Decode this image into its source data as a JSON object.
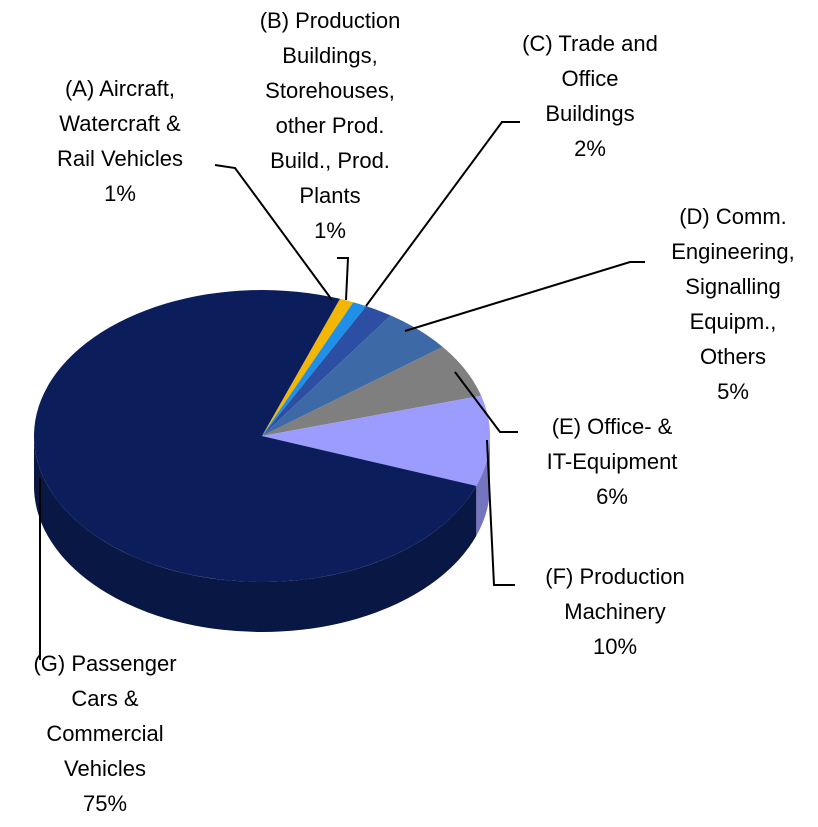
{
  "chart_data": {
    "type": "pie",
    "categories": [
      "(A) Aircraft,\nWatercraft &\nRail Vehicles",
      "(B) Production\nBuildings,\nStorehouses,\nother Prod.\nBuild.,  Prod.\nPlants",
      "(C) Trade  and\nOffice\nBuildings",
      "(D) Comm.\nEngineering,\nSignalling\nEquipm.,\nOthers",
      "(E) Office-  &\nIT-Equipment",
      "(F) Production\nMachinery",
      "(G) Passenger\nCars  &\nCommercial\nVehicles"
    ],
    "values": [
      1,
      1,
      2,
      5,
      6,
      10,
      75
    ],
    "value_labels": [
      "1%",
      "1%",
      "2%",
      "5%",
      "6%",
      "10%",
      "75%"
    ],
    "colors": [
      "#f2b705",
      "#1f8fe8",
      "#2c4fa3",
      "#3d6aa6",
      "#7f7f7f",
      "#9c9cff",
      "#0b1e5b"
    ]
  }
}
